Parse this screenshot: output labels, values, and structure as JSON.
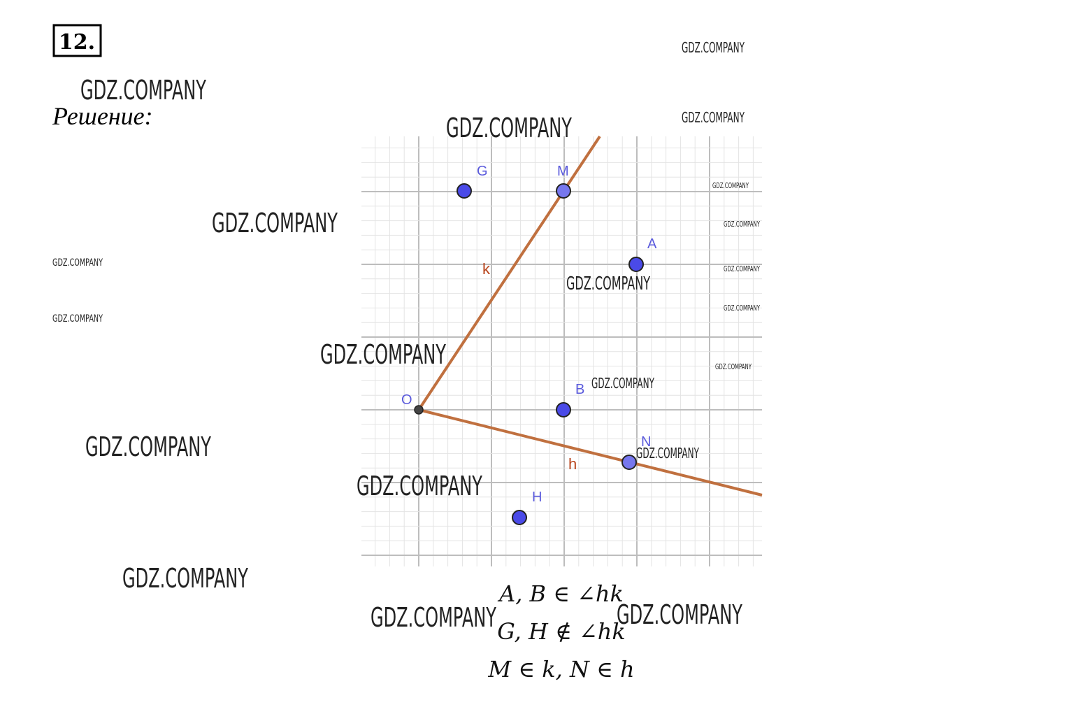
{
  "header": {
    "number": "12.",
    "solution_label": "Решение:"
  },
  "diagram": {
    "points": [
      {
        "label": "G"
      },
      {
        "label": "M"
      },
      {
        "label": "A"
      },
      {
        "label": "B"
      },
      {
        "label": "O"
      },
      {
        "label": "N"
      },
      {
        "label": "H"
      }
    ],
    "rays": [
      {
        "label": "k"
      },
      {
        "label": "h"
      }
    ]
  },
  "formulas": [
    "A, B ∈ ∠hk",
    "G, H ∉ ∠hk",
    "M ∈ k, N ∈ h"
  ],
  "watermarks": [
    "GDZ.COMPANY",
    "GDZ.COMPANY",
    "GDZ.COMPANY",
    "GDZ.COMPANY",
    "GDZ.COMPANY",
    "GDZ.COMPANY",
    "GDZ.COMPANY",
    "GDZ.COMPANY",
    "GDZ.COMPANY",
    "GDZ.COMPANY",
    "GDZ.COMPANY",
    "GDZ.COMPANY",
    "GDZ.COMPANY",
    "GDZ.COMPANY",
    "GDZ.COMPANY",
    "GDZ.COMPANY",
    "GDZ.COMPANY",
    "GDZ.COMPANY",
    "GDZ.COMPANY",
    "GDZ.COMPANY",
    "GDZ.COMPANY"
  ]
}
